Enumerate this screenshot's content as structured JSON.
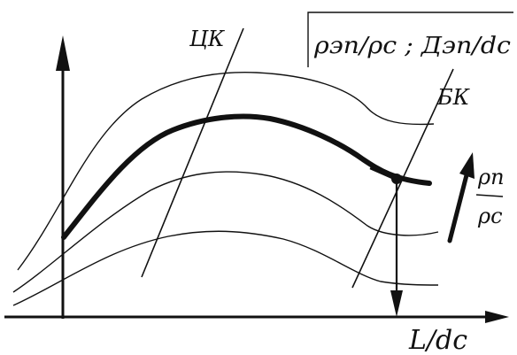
{
  "labels": {
    "left_line": "ЦК",
    "right_line": "БК",
    "y_axis": "ρэп/ρс ; Дэп/dс",
    "x_axis": "L/dс",
    "param_num": "ρп",
    "param_den": "ρс"
  },
  "colors": {
    "ink": "#111111",
    "background": "#ffffff"
  }
}
